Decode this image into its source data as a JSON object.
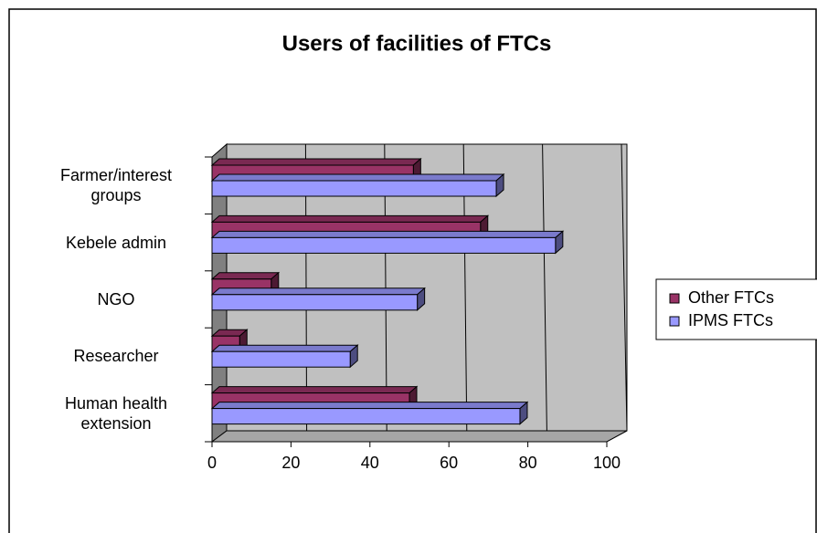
{
  "chart_data": {
    "type": "bar3d",
    "orientation": "horizontal",
    "title": "Users of facilities of FTCs",
    "categories": [
      "Farmer/interest groups",
      "Kebele admin",
      "NGO",
      "Researcher",
      "Human health extension"
    ],
    "series": [
      {
        "name": "Other FTCs",
        "color": "#993366",
        "values": [
          51,
          68,
          15,
          7,
          50
        ]
      },
      {
        "name": "IPMS FTCs",
        "color": "#9999ff",
        "values": [
          72,
          87,
          52,
          35,
          78
        ]
      }
    ],
    "xlim": [
      0,
      100
    ],
    "xticks": [
      0,
      20,
      40,
      60,
      80,
      100
    ],
    "grid": true,
    "legend": "right"
  }
}
